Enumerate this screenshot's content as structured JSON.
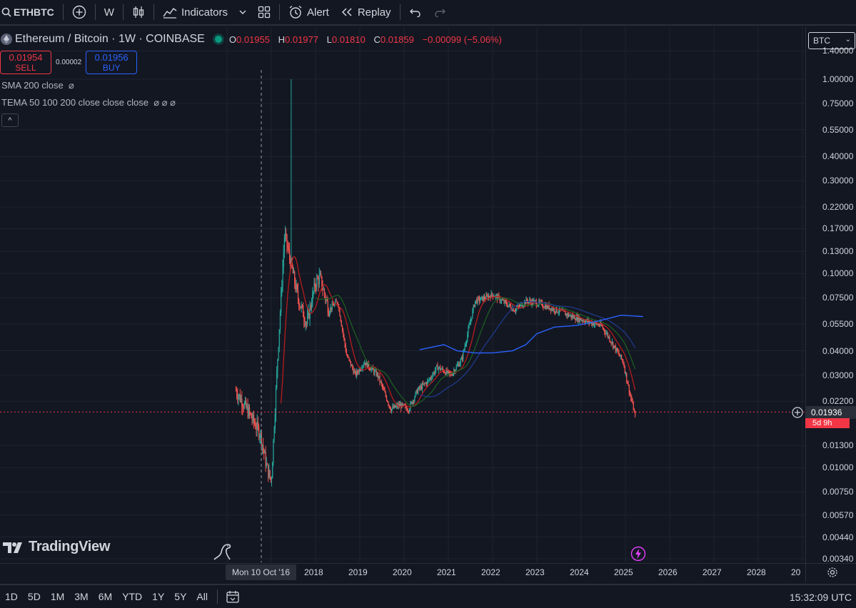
{
  "toolbar": {
    "symbol": "ETHBTC",
    "interval": "W",
    "indicators_label": "Indicators",
    "alert_label": "Alert",
    "replay_label": "Replay"
  },
  "legend": {
    "title": "Ethereum / Bitcoin · 1W · COINBASE",
    "open_key": "O",
    "open": "0.01955",
    "high_key": "H",
    "high": "0.01977",
    "low_key": "L",
    "low": "0.01810",
    "close_key": "C",
    "close": "0.01859",
    "change": "−0.00099 (−5.06%)",
    "sell_price": "0.01954",
    "sell_label": "SELL",
    "spread": "0.00002",
    "buy_price": "0.01956",
    "buy_label": "BUY",
    "indicator_1": "SMA 200 close",
    "indicator_1_icons": "⌀",
    "indicator_2": "TEMA 50 100 200 close close close",
    "indicator_2_icons": "⌀ ⌀ ⌀",
    "collapse_glyph": "^"
  },
  "price_scale": {
    "currency": "BTC",
    "labels": [
      "1.40000",
      "1.00000",
      "0.75000",
      "0.55000",
      "0.40000",
      "0.30000",
      "0.22000",
      "0.17000",
      "0.13000",
      "0.10000",
      "0.07500",
      "0.05500",
      "0.04000",
      "0.03000",
      "0.02200",
      "0.01300",
      "0.01000",
      "0.00750",
      "0.00570",
      "0.00440",
      "0.00340"
    ],
    "cursor_price": "0.01936",
    "countdown": "5d 9h"
  },
  "time_axis": {
    "crosshair_date": "Mon 10 Oct '16",
    "labels": [
      "2018",
      "2019",
      "2020",
      "2021",
      "2022",
      "2023",
      "2024",
      "2025",
      "2026",
      "2027",
      "2028",
      "20"
    ]
  },
  "watermark": "TradingView",
  "bottom_bar": {
    "ranges": [
      "1D",
      "5D",
      "1M",
      "3M",
      "6M",
      "YTD",
      "1Y",
      "5Y",
      "All"
    ],
    "clock": "15:32:09 UTC"
  },
  "colors": {
    "bg": "#131722",
    "up": "#26a69a",
    "down": "#ef5350",
    "sma": "#2962ff",
    "tema50": "#b71c1c",
    "tema100": "#1b5e20",
    "tema200": "#1e3a8a"
  },
  "chart_data": {
    "type": "candlestick",
    "symbol": "ETHBTC",
    "timeframe": "1W",
    "y_scale": "log",
    "ylim": [
      0.0031,
      1.45
    ],
    "x": [
      2016.2,
      2016.5,
      2016.75,
      2016.9,
      2017.0,
      2017.15,
      2017.3,
      2017.45,
      2017.6,
      2017.8,
      2018.0,
      2018.1,
      2018.3,
      2018.5,
      2018.7,
      2018.9,
      2019.1,
      2019.4,
      2019.7,
      2019.9,
      2020.1,
      2020.3,
      2020.55,
      2020.75,
      2020.95,
      2021.05,
      2021.3,
      2021.6,
      2021.85,
      2022.0,
      2022.3,
      2022.5,
      2022.75,
      2022.95,
      2023.2,
      2023.5,
      2023.8,
      2024.0,
      2024.2,
      2024.45,
      2024.6,
      2024.8,
      2024.95,
      2025.1,
      2025.22
    ],
    "close": [
      0.025,
      0.019,
      0.015,
      0.01,
      0.0085,
      0.04,
      0.16,
      0.11,
      0.075,
      0.055,
      0.09,
      0.095,
      0.065,
      0.072,
      0.038,
      0.03,
      0.035,
      0.03,
      0.02,
      0.021,
      0.02,
      0.025,
      0.028,
      0.033,
      0.031,
      0.03,
      0.036,
      0.072,
      0.075,
      0.078,
      0.07,
      0.065,
      0.072,
      0.071,
      0.068,
      0.064,
      0.06,
      0.058,
      0.056,
      0.054,
      0.048,
      0.04,
      0.035,
      0.024,
      0.0186
    ],
    "sma200": [
      [
        2020.35,
        0.0405
      ],
      [
        2020.9,
        0.043
      ],
      [
        2021.2,
        0.04
      ],
      [
        2021.6,
        0.039
      ],
      [
        2022.0,
        0.039
      ],
      [
        2022.45,
        0.04
      ],
      [
        2022.75,
        0.043
      ],
      [
        2023.0,
        0.049
      ],
      [
        2023.4,
        0.053
      ],
      [
        2023.9,
        0.054
      ],
      [
        2024.4,
        0.057
      ],
      [
        2024.9,
        0.061
      ],
      [
        2025.4,
        0.06
      ]
    ]
  }
}
